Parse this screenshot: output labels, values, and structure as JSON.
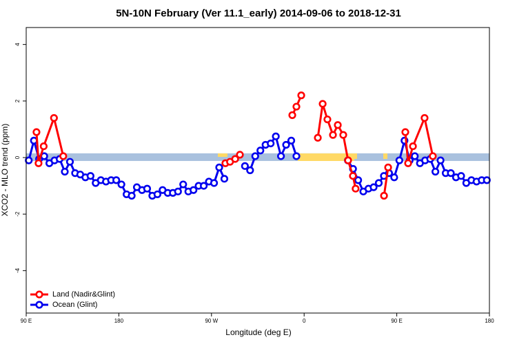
{
  "chart_data": {
    "type": "line",
    "title": "5N-10N February (Ver 11.1_early)   2014-09-06 to 2018-12-31",
    "x_label": "Longitude (deg E)",
    "y_label": "XCO2 - MLO trend (ppm)",
    "xlim": [
      90,
      540
    ],
    "ylim": [
      -5.5,
      4.6
    ],
    "xticks": [
      {
        "value": 90,
        "label": "90 E"
      },
      180,
      {
        "value": 270,
        "label": "90 W"
      },
      {
        "value": 360,
        "label": "0"
      },
      {
        "value": 450,
        "label": "90 E"
      },
      {
        "value": 540,
        "label": "180"
      }
    ],
    "yticks": [
      -4,
      -2,
      0,
      2,
      4
    ],
    "reference_band": [
      -0.12,
      0.15
    ],
    "band_color": "#a9c1de",
    "legend": "bottom-left",
    "x": [
      92.5,
      97.5,
      102.5,
      107.5,
      112.5,
      117.5,
      122.5,
      127.5,
      132.5,
      137.5,
      142.5,
      147.5,
      152.5,
      157.5,
      162.5,
      167.5,
      172.5,
      177.5,
      182.5,
      187.5,
      192.5,
      197.5,
      202.5,
      207.5,
      212.5,
      217.5,
      222.5,
      227.5,
      232.5,
      237.5,
      242.5,
      247.5,
      252.5,
      257.5,
      262.5,
      267.5,
      272.5,
      277.5,
      282.5,
      287.5,
      292.5,
      297.5,
      302.5,
      307.5,
      312.5,
      317.5,
      322.5,
      327.5,
      332.5,
      337.5,
      342.5,
      347.5,
      352.5,
      357.5,
      362.5,
      367.5,
      372.5,
      377.5,
      382.5,
      387.5,
      392.5,
      397.5,
      402.5,
      407.5,
      412.5,
      417.5,
      422.5,
      427.5,
      432.5,
      437.5,
      442.5,
      447.5,
      452.5,
      457.5,
      462.5,
      467.5,
      472.5,
      477.5,
      482.5,
      487.5,
      492.5,
      497.5,
      502.5,
      507.5,
      512.5,
      517.5,
      522.5,
      527.5,
      532.5,
      537.5
    ],
    "series": [
      {
        "name": "Land (Nadir&Glint)",
        "color": "#ff0000",
        "x": [
          100,
          102,
          107,
          117,
          126,
          null,
          283.5,
          288,
          293,
          297.6,
          null,
          348.5,
          352.5,
          357.2,
          null,
          373.3,
          378,
          382.6,
          388,
          392.7,
          398,
          402.7,
          407.4,
          410,
          null,
          437.6,
          441.6,
          null,
          458.3,
          461,
          465.7,
          477,
          485
        ],
        "values": [
          0.9,
          -0.2,
          0.4,
          1.4,
          0.05,
          null,
          -0.2,
          -0.15,
          -0.05,
          0.1,
          null,
          1.5,
          1.8,
          2.2,
          null,
          0.7,
          1.9,
          1.35,
          0.8,
          1.15,
          0.8,
          -0.1,
          -0.65,
          -1.1,
          null,
          -1.35,
          -0.35,
          null,
          0.9,
          -0.2,
          0.4,
          1.4,
          0.05
        ]
      },
      {
        "name": "Ocean (Glint)",
        "color": "#0000ee",
        "values": [
          -0.1,
          0.6,
          -0.05,
          0.05,
          -0.2,
          -0.1,
          -0.05,
          -0.5,
          -0.15,
          -0.55,
          -0.6,
          -0.7,
          -0.65,
          -0.9,
          -0.8,
          -0.85,
          -0.8,
          -0.8,
          -0.95,
          -1.3,
          -1.35,
          -1.05,
          -1.15,
          -1.1,
          -1.35,
          -1.3,
          -1.15,
          -1.25,
          -1.25,
          -1.2,
          -0.95,
          -1.2,
          -1.15,
          -1.0,
          -1.0,
          -0.85,
          -0.9,
          -0.35,
          -0.75,
          null,
          null,
          null,
          -0.3,
          -0.45,
          0.05,
          0.25,
          0.45,
          0.5,
          0.75,
          0.05,
          0.45,
          0.6,
          0.05,
          null,
          null,
          null,
          null,
          null,
          null,
          null,
          null,
          null,
          -0.1,
          -0.4,
          -0.8,
          -1.2,
          -1.1,
          -1.05,
          -0.9,
          -0.65,
          -0.55,
          -0.7,
          -0.1,
          0.6,
          -0.1,
          0.05,
          -0.2,
          -0.1,
          -0.05,
          -0.5,
          -0.1,
          -0.55,
          -0.55,
          -0.7,
          -0.65,
          -0.9,
          -0.8,
          -0.85,
          -0.8,
          -0.8
        ]
      }
    ]
  }
}
